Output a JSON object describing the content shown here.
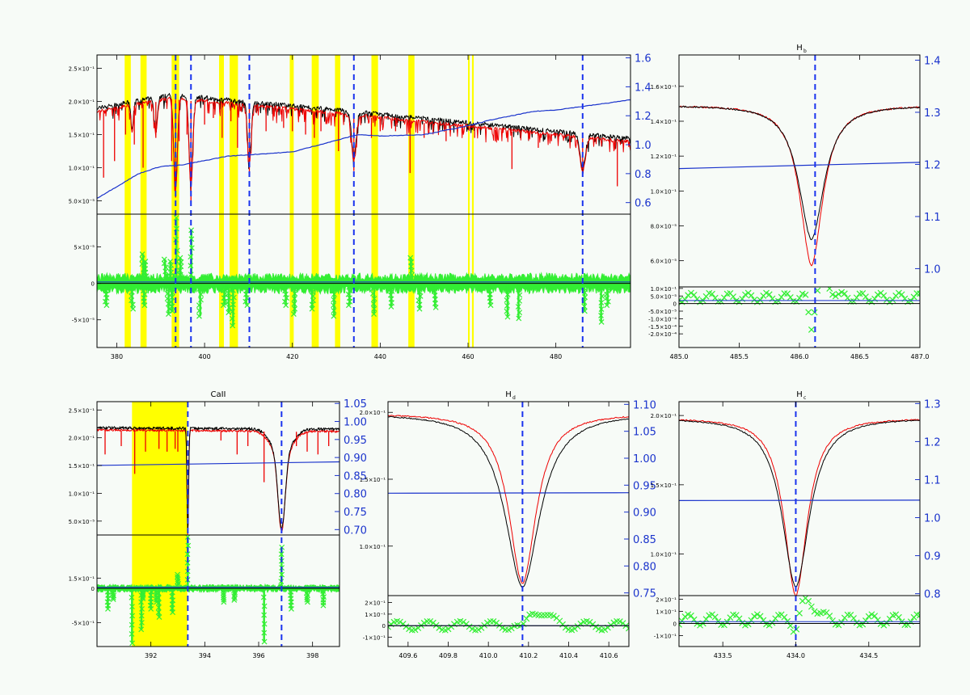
{
  "colors": {
    "observed": "#000000",
    "model": "#ee0000",
    "ratio": "#1a33cc",
    "residual": "#33ee33",
    "mask": "#ffff00",
    "marker": "#1a33ee",
    "background": "#f7fbf7"
  },
  "chart_data": [
    {
      "id": "full",
      "type": "line",
      "title": "",
      "x_ticks": [
        "380",
        "400",
        "420",
        "440",
        "460",
        "480"
      ],
      "x_tick_values": [
        380,
        400,
        420,
        440,
        460,
        480
      ],
      "xlim": [
        375.5,
        497.0
      ],
      "top_left_ticks": [
        "2.5×10⁻¹",
        "2.0×10⁻¹",
        "1.5×10⁻¹",
        "1.0×10⁻¹",
        "5.0×10⁻⁵"
      ],
      "top_left_values": [
        2.5,
        2.0,
        1.5,
        1.0,
        0.5
      ],
      "top_ylim": [
        0.3,
        2.7
      ],
      "right_ticks": [
        "1.6",
        "1.4",
        "1.2",
        "1.0",
        "0.8",
        "0.6"
      ],
      "right_values": [
        1.6,
        1.4,
        1.2,
        1.0,
        0.8,
        0.6
      ],
      "right_ylim": [
        0.52,
        1.62
      ],
      "bottom_left_ticks": [
        "5×10⁻⁵",
        "0",
        "-5×10⁻⁵"
      ],
      "bottom_left_values": [
        5,
        0,
        -5
      ],
      "bottom_ylim": [
        -8.8,
        9.5
      ],
      "markers": [
        393.4,
        396.9,
        410.2,
        434.0,
        486.1
      ],
      "masks": [
        [
          381.8,
          383.2
        ],
        [
          385.4,
          386.8
        ],
        [
          392.5,
          394.2
        ],
        [
          403.3,
          404.4
        ],
        [
          405.7,
          407.6
        ],
        [
          419.4,
          420.3
        ],
        [
          424.4,
          426.0
        ],
        [
          429.7,
          430.9
        ],
        [
          438.0,
          439.5
        ],
        [
          446.4,
          447.8
        ],
        [
          460.0,
          460.3
        ],
        [
          460.9,
          461.3
        ]
      ],
      "ratio_series": [
        [
          375.5,
          0.63
        ],
        [
          380,
          0.71
        ],
        [
          385,
          0.8
        ],
        [
          390,
          0.85
        ],
        [
          395,
          0.86
        ],
        [
          400,
          0.89
        ],
        [
          405,
          0.92
        ],
        [
          410,
          0.93
        ],
        [
          420,
          0.95
        ],
        [
          430,
          1.03
        ],
        [
          435,
          1.07
        ],
        [
          440,
          1.06
        ],
        [
          450,
          1.07
        ],
        [
          460,
          1.13
        ],
        [
          465,
          1.17
        ],
        [
          470,
          1.2
        ],
        [
          475,
          1.23
        ],
        [
          480,
          1.24
        ],
        [
          485,
          1.26
        ],
        [
          490,
          1.28
        ],
        [
          497,
          1.31
        ]
      ],
      "model_lines": [
        [
          377.0,
          0.85
        ],
        [
          379.5,
          1.1
        ],
        [
          382.0,
          1.5
        ],
        [
          384.0,
          1.35
        ],
        [
          386.0,
          1.0
        ],
        [
          388.9,
          1.45
        ],
        [
          392.5,
          1.1
        ],
        [
          393.4,
          0.55
        ],
        [
          394.2,
          1.4
        ],
        [
          396.0,
          1.5
        ],
        [
          396.9,
          0.5
        ],
        [
          400.0,
          1.65
        ],
        [
          402.0,
          1.75
        ],
        [
          404.0,
          1.45
        ],
        [
          406.0,
          1.7
        ],
        [
          407.5,
          1.3
        ],
        [
          410.2,
          0.92
        ],
        [
          414.0,
          1.55
        ],
        [
          418.0,
          1.6
        ],
        [
          420.0,
          1.55
        ],
        [
          423.0,
          1.5
        ],
        [
          425.0,
          1.45
        ],
        [
          426.5,
          1.55
        ],
        [
          430.5,
          1.25
        ],
        [
          434.0,
          0.95
        ],
        [
          438.0,
          1.45
        ],
        [
          440.0,
          1.55
        ],
        [
          443.5,
          1.55
        ],
        [
          446.8,
          0.92
        ],
        [
          450.0,
          1.45
        ],
        [
          455.0,
          1.4
        ],
        [
          461.5,
          1.45
        ],
        [
          466.2,
          1.4
        ],
        [
          470.0,
          0.98
        ],
        [
          476.0,
          1.3
        ],
        [
          479.0,
          1.4
        ],
        [
          482.0,
          1.45
        ],
        [
          486.1,
          0.98
        ],
        [
          491.0,
          1.4
        ],
        [
          494.0,
          0.72
        ],
        [
          496.0,
          1.42
        ]
      ],
      "residual_dips": [
        [
          377.6,
          -3
        ],
        [
          383.5,
          -3.5
        ],
        [
          386.2,
          -3
        ],
        [
          391.8,
          -4.2
        ],
        [
          392.6,
          -3.8
        ],
        [
          399.0,
          -4.5
        ],
        [
          404.5,
          -3
        ],
        [
          405.5,
          -4
        ],
        [
          406.5,
          -5.8
        ],
        [
          409.5,
          -3
        ],
        [
          418.5,
          -3
        ],
        [
          420.5,
          -4.2
        ],
        [
          424.5,
          -3.5
        ],
        [
          429.5,
          -4.5
        ],
        [
          433.0,
          -3
        ],
        [
          438.6,
          -4.2
        ],
        [
          442.5,
          -3.2
        ],
        [
          449.0,
          -3.5
        ],
        [
          452.5,
          -3.3
        ],
        [
          465.0,
          -3
        ],
        [
          469.0,
          -4.6
        ],
        [
          471.5,
          -4.8
        ],
        [
          486.5,
          -3.8
        ],
        [
          490.3,
          -5.3
        ],
        [
          491.8,
          -3
        ]
      ],
      "residual_spikes": [
        [
          393.6,
          9.0
        ],
        [
          397.0,
          7.3
        ],
        [
          391.0,
          3.3
        ],
        [
          394.5,
          3.5
        ],
        [
          386.5,
          3.0
        ],
        [
          447.0,
          3.5
        ],
        [
          392.2,
          3.0
        ],
        [
          386.0,
          4.0
        ]
      ]
    },
    {
      "id": "hb",
      "type": "line",
      "title": "H",
      "title_sub": "b",
      "x_ticks": [
        "485.0",
        "485.5",
        "486.0",
        "486.5",
        "487.0"
      ],
      "x_tick_values": [
        485.0,
        485.5,
        486.0,
        486.5,
        487.0
      ],
      "xlim": [
        485.0,
        487.0
      ],
      "top_left_ticks": [
        "1.6×10⁻¹",
        "1.4×10⁻¹",
        "1.2×10⁻¹",
        "1.0×10⁻¹",
        "8.0×10⁻⁵",
        "6.0×10⁻⁵"
      ],
      "top_left_values": [
        1.6,
        1.4,
        1.2,
        1.0,
        0.8,
        0.6
      ],
      "top_ylim": [
        0.45,
        1.78
      ],
      "right_ticks": [
        "1.4",
        "1.3",
        "1.2",
        "1.1",
        "1.0"
      ],
      "right_values": [
        1.4,
        1.3,
        1.2,
        1.1,
        1.0
      ],
      "right_ylim": [
        0.965,
        1.41
      ],
      "bottom_left_ticks": [
        "1.0×10⁻¹",
        "5.0×10⁻⁵",
        "0",
        "-5.0×10⁻⁵",
        "-1.0×10⁻⁴",
        "-1.5×10⁻⁴",
        "-2.0×10⁻⁴"
      ],
      "bottom_left_values": [
        10,
        5,
        0,
        -5,
        -10,
        -15,
        -20
      ],
      "bottom_ylim": [
        -29,
        11
      ],
      "markers": [
        486.13
      ],
      "line_center": 486.1,
      "continuum": 1.49,
      "obs_depth": 0.77,
      "obs_width": 0.27,
      "mod_depth": 0.92,
      "mod_width": 0.24,
      "ratio_left": 1.192,
      "ratio_right": 1.204,
      "resid_left": 4,
      "resid_right": 4,
      "resid_peak": 10,
      "resid_trough": -23
    },
    {
      "id": "caii",
      "type": "line",
      "title": "CaII",
      "title_sub": "",
      "x_ticks": [
        "392",
        "394",
        "396",
        "398"
      ],
      "x_tick_values": [
        392,
        394,
        396,
        398
      ],
      "xlim": [
        390.0,
        399.0
      ],
      "top_left_ticks": [
        "2.5×10⁻¹",
        "2.0×10⁻¹",
        "1.5×10⁻¹",
        "1.0×10⁻¹",
        "5.0×10⁻⁵"
      ],
      "top_left_values": [
        2.5,
        2.0,
        1.5,
        1.0,
        0.5
      ],
      "top_ylim": [
        0.25,
        2.65
      ],
      "right_ticks": [
        "1.05",
        "1.00",
        "0.95",
        "0.90",
        "0.85",
        "0.80",
        "0.75",
        "0.70"
      ],
      "right_values": [
        1.05,
        1.0,
        0.95,
        0.9,
        0.85,
        0.8,
        0.75,
        0.7
      ],
      "right_ylim": [
        0.685,
        1.055
      ],
      "bottom_left_ticks": [
        "1.5×10⁻¹",
        "0",
        "-5×10⁻¹"
      ],
      "bottom_left_values": [
        1.5,
        0,
        -5
      ],
      "bottom_ylim": [
        -8.5,
        7.8
      ],
      "markers": [
        393.37,
        396.85
      ],
      "masks": [
        [
          391.3,
          393.35
        ]
      ],
      "ratio_left": 0.878,
      "ratio_right": 0.888,
      "model_lines": [
        [
          390.3,
          1.7
        ],
        [
          390.9,
          1.85
        ],
        [
          391.4,
          1.35
        ],
        [
          391.8,
          1.75
        ],
        [
          392.3,
          1.8
        ],
        [
          392.6,
          1.75
        ],
        [
          392.9,
          1.8
        ],
        [
          393.0,
          1.75
        ],
        [
          394.6,
          1.95
        ],
        [
          395.2,
          1.7
        ],
        [
          395.6,
          1.85
        ],
        [
          396.2,
          1.2
        ],
        [
          397.4,
          1.85
        ],
        [
          397.8,
          1.75
        ],
        [
          398.2,
          1.7
        ],
        [
          398.6,
          1.85
        ]
      ],
      "resid_spikes": [
        [
          393.37,
          7.5
        ],
        [
          396.85,
          6.0
        ],
        [
          391.7,
          -1.5
        ],
        [
          392.2,
          -2.0
        ],
        [
          393.0,
          2.0
        ],
        [
          396.2,
          -7.8
        ]
      ],
      "resid_dips": [
        [
          390.4,
          -3
        ],
        [
          390.6,
          -1.6
        ],
        [
          391.3,
          -8
        ],
        [
          391.65,
          -6
        ],
        [
          392.0,
          -3
        ],
        [
          392.3,
          -4.2
        ],
        [
          392.8,
          -3.5
        ],
        [
          394.7,
          -2.0
        ],
        [
          395.1,
          -1.7
        ],
        [
          397.2,
          -3
        ],
        [
          397.8,
          -2
        ],
        [
          398.4,
          -2.5
        ]
      ]
    },
    {
      "id": "hd",
      "type": "line",
      "title": "H",
      "title_sub": "d",
      "x_ticks": [
        "409.6",
        "409.8",
        "410.0",
        "410.2",
        "410.4",
        "410.6"
      ],
      "x_tick_values": [
        409.6,
        409.8,
        410.0,
        410.2,
        410.4,
        410.6
      ],
      "xlim": [
        409.5,
        410.7
      ],
      "top_left_ticks": [
        "2.0×10⁻¹",
        "1.5×10⁻¹",
        "1.0×10⁻¹"
      ],
      "top_left_values": [
        2.0,
        1.5,
        1.0
      ],
      "top_ylim": [
        0.63,
        2.08
      ],
      "right_ticks": [
        "1.10",
        "1.05",
        "1.00",
        "0.95",
        "0.90",
        "0.85",
        "0.80",
        "0.75"
      ],
      "right_values": [
        1.1,
        1.05,
        1.0,
        0.95,
        0.9,
        0.85,
        0.8,
        0.75
      ],
      "right_ylim": [
        0.745,
        1.105
      ],
      "bottom_left_ticks": [
        "2×10⁻¹",
        "1×10⁻¹",
        "0",
        "-1×10⁻¹"
      ],
      "bottom_left_values": [
        2,
        1,
        0,
        -1
      ],
      "bottom_ylim": [
        -1.8,
        2.6
      ],
      "markers": [
        410.17
      ],
      "line_center": 410.17,
      "continuum": 1.99,
      "obs_depth": 1.3,
      "obs_width": 0.22,
      "mod_depth": 1.27,
      "mod_width": 0.17,
      "ratio_left": 0.935,
      "ratio_right": 0.936,
      "resid_left": 0,
      "resid_right": 0,
      "resid_peak": 1.3,
      "resid_trough": -0.8
    },
    {
      "id": "hg",
      "type": "line",
      "title": "H",
      "title_sub": "c",
      "x_ticks": [
        "433.5",
        "434.0",
        "434.5"
      ],
      "x_tick_values": [
        433.5,
        434.0,
        434.5
      ],
      "xlim": [
        433.2,
        434.85
      ],
      "top_left_ticks": [
        "2.0×10⁻¹",
        "1.5×10⁻¹",
        "1.0×10⁻¹"
      ],
      "top_left_values": [
        2.0,
        1.5,
        1.0
      ],
      "top_ylim": [
        0.7,
        2.1
      ],
      "right_ticks": [
        "1.3",
        "1.2",
        "1.1",
        "1.0",
        "0.9",
        "0.8"
      ],
      "right_values": [
        1.3,
        1.2,
        1.1,
        1.0,
        0.9,
        0.8
      ],
      "right_ylim": [
        0.795,
        1.305
      ],
      "bottom_left_ticks": [
        "2×10⁻¹",
        "1×10⁻¹",
        "0",
        "-1×10⁻¹"
      ],
      "bottom_left_values": [
        2,
        1,
        0,
        -1
      ],
      "bottom_ylim": [
        -1.9,
        2.3
      ],
      "markers": [
        434.0
      ],
      "line_center": 434.0,
      "continuum": 1.98,
      "obs_depth": 1.22,
      "obs_width": 0.24,
      "mod_depth": 1.28,
      "mod_width": 0.2,
      "ratio_left": 1.045,
      "ratio_right": 1.046,
      "resid_left": 0.3,
      "resid_right": 0.3,
      "resid_peak": 1.5,
      "resid_trough": -1.3
    }
  ]
}
